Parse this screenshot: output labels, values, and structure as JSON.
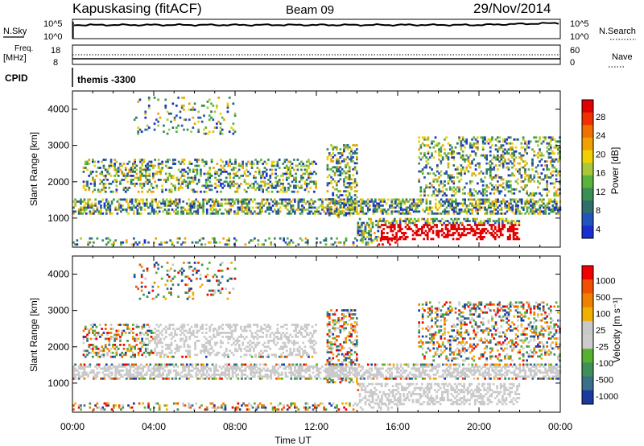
{
  "header": {
    "station": "Kapuskasing (fitACF)",
    "beam": "Beam 09",
    "date": "29/Nov/2014"
  },
  "top_panels": {
    "nsky_label": "N.Sky",
    "nsky_ticks": [
      "10^5",
      "10^0"
    ],
    "nsearch_label": "N.Search",
    "nsearch_ticks": [
      "10^5",
      "10^0"
    ],
    "freq_label_1": "Freq.",
    "freq_label_2": "[MHz]",
    "freq_ticks": [
      "18",
      "8"
    ],
    "nave_label": "Nave",
    "nave_ticks": [
      "60",
      "0"
    ],
    "cpid_label": "CPID",
    "cpid_value": "themis -3300"
  },
  "colors": {
    "power_scale": [
      "#1a2ed1",
      "#2255bb",
      "#2f6e6a",
      "#3a8f55",
      "#5ab33a",
      "#a8c83a",
      "#f0d000",
      "#f0a000",
      "#f07000",
      "#f03000",
      "#e00000"
    ],
    "velocity_scale": [
      "#1a3a9e",
      "#3a6f8a",
      "#3f8f5a",
      "#58b030",
      "#cccccc",
      "#c8c8c8",
      "#f0b000",
      "#f08000",
      "#f05000",
      "#f00000"
    ]
  },
  "chart_data": [
    {
      "type": "line",
      "title": "N.Sky / N.Search",
      "ylabel": "N.Sky",
      "ytick_labels": [
        "10^5",
        "10^0"
      ],
      "y2label": "N.Search",
      "y2tick_labels": [
        "10^5",
        "10^0"
      ]
    },
    {
      "type": "line",
      "title": "Freq. [MHz] / Nave",
      "ylabel": "Freq. [MHz]",
      "ytick_labels": [
        "18",
        "8"
      ],
      "y2label": "Nave",
      "y2tick_labels": [
        "60",
        "0"
      ]
    },
    {
      "type": "heatmap",
      "ylabel": "Slant Range [km]",
      "yticks": [
        1000,
        2000,
        3000,
        4000
      ],
      "ylim": [
        200,
        4500
      ],
      "xlim": [
        0,
        24
      ],
      "xticks": [
        "00:00",
        "04:00",
        "08:00",
        "12:00",
        "16:00",
        "20:00",
        "00:00"
      ],
      "colorbar": {
        "label": "Power [dB]",
        "ticks": [
          "4",
          "8",
          "12",
          "16",
          "20",
          "24",
          "28"
        ]
      }
    },
    {
      "type": "heatmap",
      "ylabel": "Slant Range [km]",
      "yticks": [
        1000,
        2000,
        3000,
        4000
      ],
      "ylim": [
        200,
        4500
      ],
      "xlim": [
        0,
        24
      ],
      "xlabel": "Time UT",
      "xticks": [
        "00:00",
        "04:00",
        "08:00",
        "12:00",
        "16:00",
        "20:00",
        "00:00"
      ],
      "colorbar": {
        "label": "Velocity [m s⁻¹]",
        "ticks": [
          "1000",
          "500",
          "100",
          "25",
          "-25",
          "-100",
          "-500",
          "-1000"
        ]
      }
    }
  ]
}
